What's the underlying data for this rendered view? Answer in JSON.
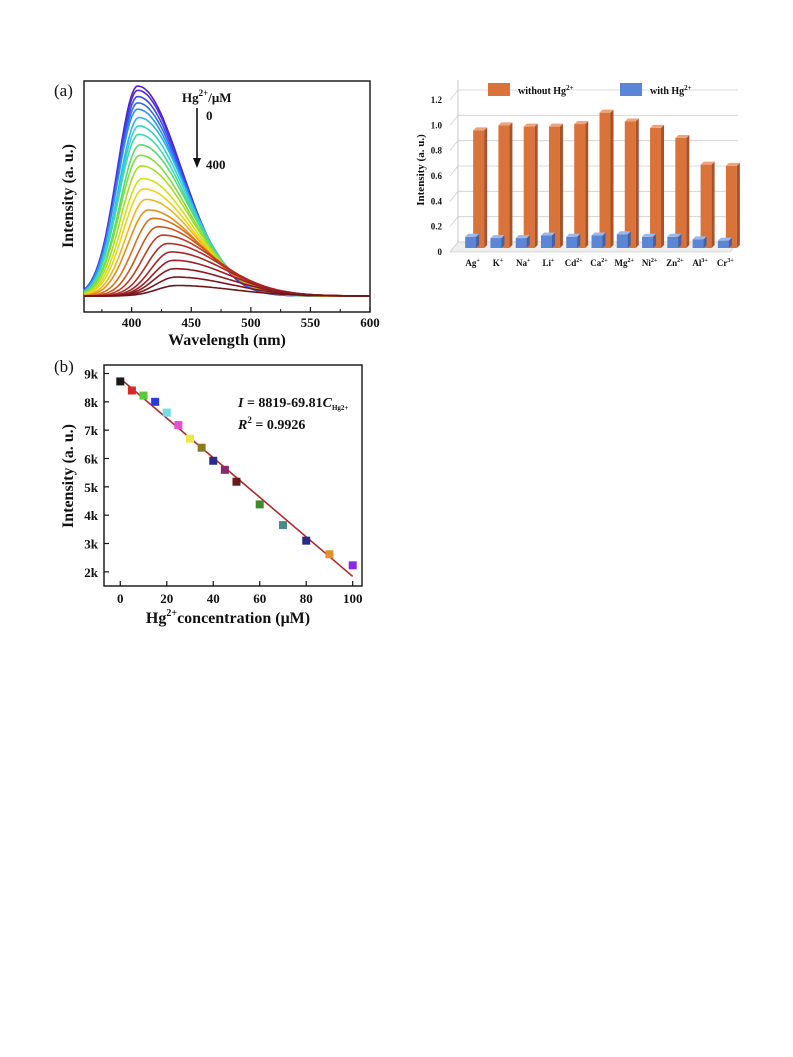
{
  "chart_data": [
    {
      "panel": "(a)",
      "type": "line",
      "xlabel": "Wavelength (nm)",
      "ylabel": "Intensity (a. u.)",
      "xlim": [
        360,
        600
      ],
      "xticks": [
        "400",
        "450",
        "500",
        "550",
        "600"
      ],
      "annotation": {
        "title_base": "Hg",
        "title_sup": "2+",
        "title_unit": "/μM",
        "start": "0",
        "end": "400"
      },
      "series_hint": "fluorescence spectra, peak shifting from ~405 nm to ~435 nm as Hg2+ increases",
      "peaks": [
        {
          "x": 405,
          "y": 1.0
        },
        {
          "x": 405,
          "y": 0.98
        },
        {
          "x": 405,
          "y": 0.95
        },
        {
          "x": 405,
          "y": 0.92
        },
        {
          "x": 405,
          "y": 0.89
        },
        {
          "x": 406,
          "y": 0.85
        },
        {
          "x": 406,
          "y": 0.81
        },
        {
          "x": 406,
          "y": 0.77
        },
        {
          "x": 407,
          "y": 0.72
        },
        {
          "x": 407,
          "y": 0.67
        },
        {
          "x": 408,
          "y": 0.62
        },
        {
          "x": 409,
          "y": 0.56
        },
        {
          "x": 410,
          "y": 0.51
        },
        {
          "x": 412,
          "y": 0.46
        },
        {
          "x": 414,
          "y": 0.41
        },
        {
          "x": 418,
          "y": 0.37
        },
        {
          "x": 422,
          "y": 0.33
        },
        {
          "x": 426,
          "y": 0.29
        },
        {
          "x": 430,
          "y": 0.25
        },
        {
          "x": 433,
          "y": 0.21
        },
        {
          "x": 435,
          "y": 0.17
        },
        {
          "x": 436,
          "y": 0.13
        },
        {
          "x": 437,
          "y": 0.09
        },
        {
          "x": 438,
          "y": 0.05
        }
      ],
      "colors": [
        "#5a1cc9",
        "#4b2fe0",
        "#3a48ee",
        "#2f6cf2",
        "#2c92f0",
        "#2eb6ea",
        "#34d1d6",
        "#3ed9a8",
        "#55db70",
        "#7fdb3e",
        "#a8dd22",
        "#cfe01a",
        "#efd31a",
        "#f3b51c",
        "#e58f1c",
        "#d8701c",
        "#cc561f",
        "#c03e22",
        "#b52d25",
        "#a92426",
        "#9c1f25",
        "#8d1b22",
        "#7d181f",
        "#6c161c"
      ]
    },
    {
      "panel": "(b)",
      "type": "scatter",
      "xlabel_base": "Hg",
      "xlabel_sup": "2+",
      "xlabel_rest": "concentration (μM)",
      "ylabel": "Intensity (a. u.)",
      "xlim": [
        -7,
        104
      ],
      "ylim": [
        1500,
        9300
      ],
      "xticks": [
        0,
        20,
        40,
        60,
        80,
        100
      ],
      "yticks": [
        2000,
        3000,
        4000,
        5000,
        6000,
        7000,
        8000,
        9000
      ],
      "ytick_labels": [
        "2k",
        "3k",
        "4k",
        "5k",
        "6k",
        "7k",
        "8k",
        "9k"
      ],
      "equation": {
        "lhs": "I",
        "rhs": " = 8819-69.81",
        "coef": "C",
        "sub": "Hg2+"
      },
      "r2": {
        "lhs": "R",
        "sup": "2",
        "rhs": " = 0.9926"
      },
      "fit": {
        "intercept": 8819,
        "slope": -69.81,
        "x_range": [
          0,
          100
        ]
      },
      "points": [
        {
          "x": 0,
          "y": 8720,
          "color": "#1a1a1a"
        },
        {
          "x": 5,
          "y": 8400,
          "color": "#d42a2a"
        },
        {
          "x": 10,
          "y": 8220,
          "color": "#5ac83c"
        },
        {
          "x": 15,
          "y": 8000,
          "color": "#2a3ae0"
        },
        {
          "x": 20,
          "y": 7620,
          "color": "#6fe0ea"
        },
        {
          "x": 25,
          "y": 7180,
          "color": "#e24fd2"
        },
        {
          "x": 30,
          "y": 6700,
          "color": "#e8e84a"
        },
        {
          "x": 35,
          "y": 6380,
          "color": "#8c7a1e"
        },
        {
          "x": 40,
          "y": 5920,
          "color": "#2b2a8c"
        },
        {
          "x": 45,
          "y": 5600,
          "color": "#8a2a6a"
        },
        {
          "x": 50,
          "y": 5180,
          "color": "#6a1a1a"
        },
        {
          "x": 60,
          "y": 4380,
          "color": "#3f8a2a"
        },
        {
          "x": 70,
          "y": 3650,
          "color": "#4a8a8a"
        },
        {
          "x": 80,
          "y": 3100,
          "color": "#2a2a8a"
        },
        {
          "x": 90,
          "y": 2620,
          "color": "#e0902a"
        },
        {
          "x": 100,
          "y": 2230,
          "color": "#8a2ae8"
        }
      ]
    },
    {
      "panel": "bar",
      "type": "bar",
      "ylabel": "Intensity (a. u.)",
      "ylim": [
        0,
        1.2
      ],
      "yticks": [
        "0",
        "0.2",
        "0.4",
        "0.6",
        "0.8",
        "1.0",
        "1.2"
      ],
      "categories": [
        {
          "base": "Ag",
          "sup": "+"
        },
        {
          "base": "K",
          "sup": "+"
        },
        {
          "base": "Na",
          "sup": "+"
        },
        {
          "base": "Li",
          "sup": "+"
        },
        {
          "base": "Cd",
          "sup": "2+"
        },
        {
          "base": "Ca",
          "sup": "2+"
        },
        {
          "base": "Mg",
          "sup": "2+"
        },
        {
          "base": "Ni",
          "sup": "2+"
        },
        {
          "base": "Zn",
          "sup": "2+"
        },
        {
          "base": "Al",
          "sup": "3+"
        },
        {
          "base": "Cr",
          "sup": "3+"
        }
      ],
      "series": [
        {
          "name_base": "without Hg",
          "name_sup": "2+",
          "color": "#d9733a",
          "values": [
            0.96,
            1.0,
            0.99,
            0.99,
            1.01,
            1.1,
            1.03,
            0.98,
            0.9,
            0.69,
            0.68
          ]
        },
        {
          "name_base": "with Hg",
          "name_sup": "2+",
          "color": "#5b86d6",
          "values": [
            0.12,
            0.11,
            0.11,
            0.13,
            0.12,
            0.13,
            0.14,
            0.12,
            0.12,
            0.1,
            0.09
          ]
        }
      ]
    }
  ]
}
